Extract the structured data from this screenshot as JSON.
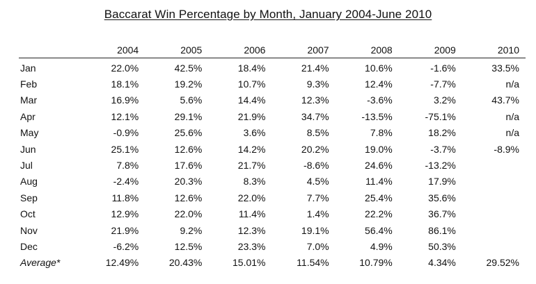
{
  "title": "Baccarat Win Percentage by Month, January 2004-June 2010",
  "years": [
    "2004",
    "2005",
    "2006",
    "2007",
    "2008",
    "2009",
    "2010"
  ],
  "rows": [
    {
      "month": "Jan",
      "values": [
        "22.0%",
        "42.5%",
        "18.4%",
        "21.4%",
        "10.6%",
        "-1.6%",
        "33.5%"
      ]
    },
    {
      "month": "Feb",
      "values": [
        "18.1%",
        "19.2%",
        "10.7%",
        "9.3%",
        "12.4%",
        "-7.7%",
        "n/a"
      ]
    },
    {
      "month": "Mar",
      "values": [
        "16.9%",
        "5.6%",
        "14.4%",
        "12.3%",
        "-3.6%",
        "3.2%",
        "43.7%"
      ]
    },
    {
      "month": "Apr",
      "values": [
        "12.1%",
        "29.1%",
        "21.9%",
        "34.7%",
        "-13.5%",
        "-75.1%",
        "n/a"
      ]
    },
    {
      "month": "May",
      "values": [
        "-0.9%",
        "25.6%",
        "3.6%",
        "8.5%",
        "7.8%",
        "18.2%",
        "n/a"
      ]
    },
    {
      "month": "Jun",
      "values": [
        "25.1%",
        "12.6%",
        "14.2%",
        "20.2%",
        "19.0%",
        "-3.7%",
        "-8.9%"
      ]
    },
    {
      "month": "Jul",
      "values": [
        "7.8%",
        "17.6%",
        "21.7%",
        "-8.6%",
        "24.6%",
        "-13.2%",
        ""
      ]
    },
    {
      "month": "Aug",
      "values": [
        "-2.4%",
        "20.3%",
        "8.3%",
        "4.5%",
        "11.4%",
        "17.9%",
        ""
      ]
    },
    {
      "month": "Sep",
      "values": [
        "11.8%",
        "12.6%",
        "22.0%",
        "7.7%",
        "25.4%",
        "35.6%",
        ""
      ]
    },
    {
      "month": "Oct",
      "values": [
        "12.9%",
        "22.0%",
        "11.4%",
        "1.4%",
        "22.2%",
        "36.7%",
        ""
      ]
    },
    {
      "month": "Nov",
      "values": [
        "21.9%",
        "9.2%",
        "12.3%",
        "19.1%",
        "56.4%",
        "86.1%",
        ""
      ]
    },
    {
      "month": "Dec",
      "values": [
        "-6.2%",
        "12.5%",
        "23.3%",
        "7.0%",
        "4.9%",
        "50.3%",
        ""
      ]
    }
  ],
  "average": {
    "label": "Average*",
    "values": [
      "12.49%",
      "20.43%",
      "15.01%",
      "11.54%",
      "10.79%",
      "4.34%",
      "29.52%"
    ]
  }
}
